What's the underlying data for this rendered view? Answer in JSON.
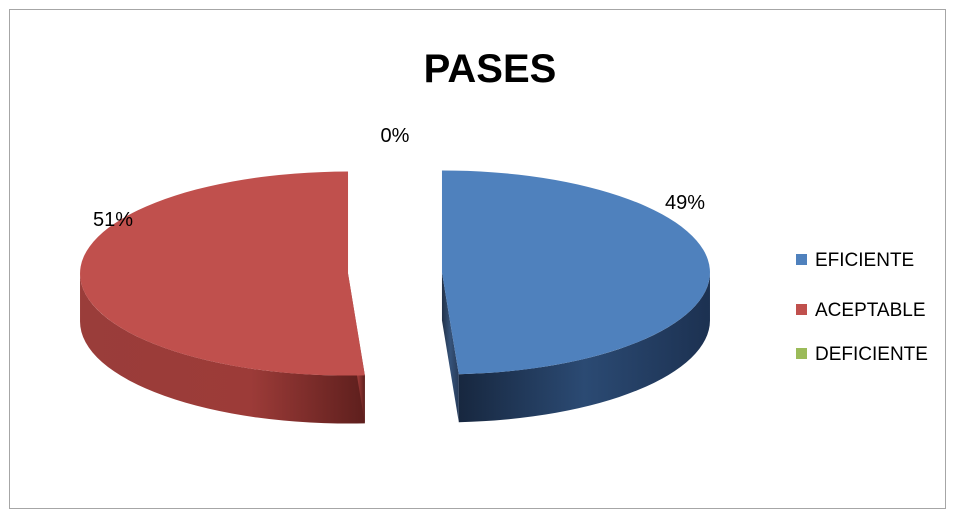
{
  "chart_data": {
    "type": "pie",
    "title": "PASES",
    "categories": [
      "EFICIENTE",
      "ACEPTABLE",
      "DEFICIENTE"
    ],
    "values": [
      49,
      51,
      0
    ],
    "labels": [
      "49%",
      "51%",
      "0%"
    ],
    "colors": [
      "#4f81bd",
      "#c0504d",
      "#9bbb59"
    ],
    "legend_position": "right",
    "style": "3d-exploded"
  }
}
